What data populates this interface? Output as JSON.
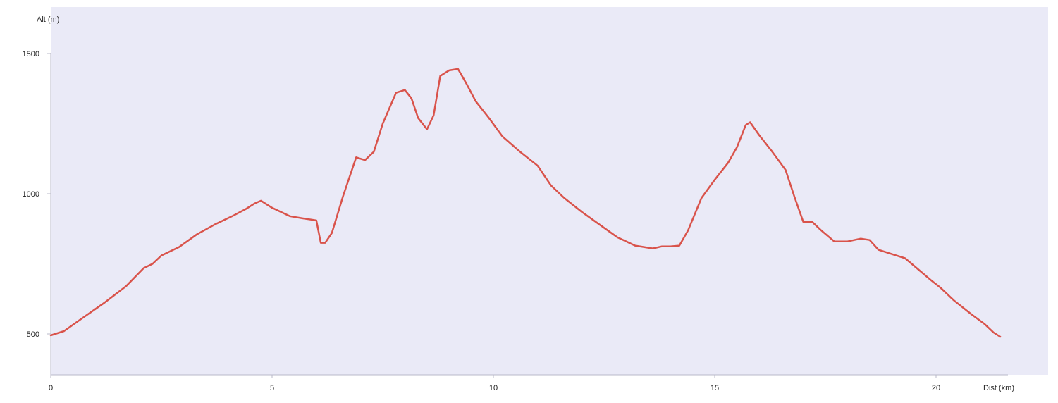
{
  "chart_data": {
    "type": "line",
    "title": "",
    "xlabel": "Dist (km)",
    "ylabel": "Alt (m)",
    "xlim": [
      0,
      21.6
    ],
    "ylim": [
      360,
      1560
    ],
    "x_ticks": [
      0,
      5,
      10,
      15,
      20
    ],
    "y_ticks": [
      500,
      1000,
      1500
    ],
    "grid": false,
    "colors": {
      "plot_background": "#eaeaf7",
      "line": "#d9534b",
      "axis": "#b8b8c8",
      "tick_text": "#222222"
    },
    "series": [
      {
        "x": [
          0,
          0.3,
          0.7,
          1.2,
          1.7,
          2.1,
          2.3,
          2.5,
          2.9,
          3.3,
          3.7,
          4.1,
          4.4,
          4.6,
          4.75,
          5.0,
          5.4,
          5.7,
          6.0,
          6.1,
          6.2,
          6.35,
          6.6,
          6.9,
          7.1,
          7.3,
          7.5,
          7.8,
          8.0,
          8.15,
          8.3,
          8.5,
          8.65,
          8.8,
          9.0,
          9.2,
          9.4,
          9.6,
          9.9,
          10.2,
          10.6,
          11.0,
          11.3,
          11.6,
          12.0,
          12.4,
          12.8,
          13.2,
          13.6,
          13.8,
          14.0,
          14.2,
          14.4,
          14.7,
          15.0,
          15.3,
          15.5,
          15.7,
          15.8,
          16.0,
          16.3,
          16.6,
          16.8,
          17.0,
          17.2,
          17.4,
          17.7,
          18.0,
          18.3,
          18.5,
          18.7,
          19.0,
          19.3,
          19.6,
          19.9,
          20.1,
          20.4,
          20.8,
          21.1,
          21.3,
          21.45
        ],
        "y": [
          495,
          510,
          555,
          610,
          670,
          735,
          750,
          780,
          810,
          855,
          890,
          920,
          945,
          965,
          975,
          950,
          920,
          912,
          905,
          825,
          825,
          860,
          990,
          1130,
          1120,
          1150,
          1250,
          1360,
          1370,
          1340,
          1270,
          1230,
          1280,
          1420,
          1440,
          1445,
          1390,
          1330,
          1270,
          1205,
          1150,
          1100,
          1030,
          985,
          935,
          890,
          845,
          815,
          805,
          812,
          812,
          815,
          870,
          985,
          1050,
          1110,
          1165,
          1245,
          1255,
          1210,
          1150,
          1085,
          990,
          900,
          900,
          870,
          830,
          830,
          840,
          835,
          800,
          785,
          770,
          730,
          690,
          665,
          620,
          570,
          535,
          505,
          490
        ]
      }
    ]
  }
}
